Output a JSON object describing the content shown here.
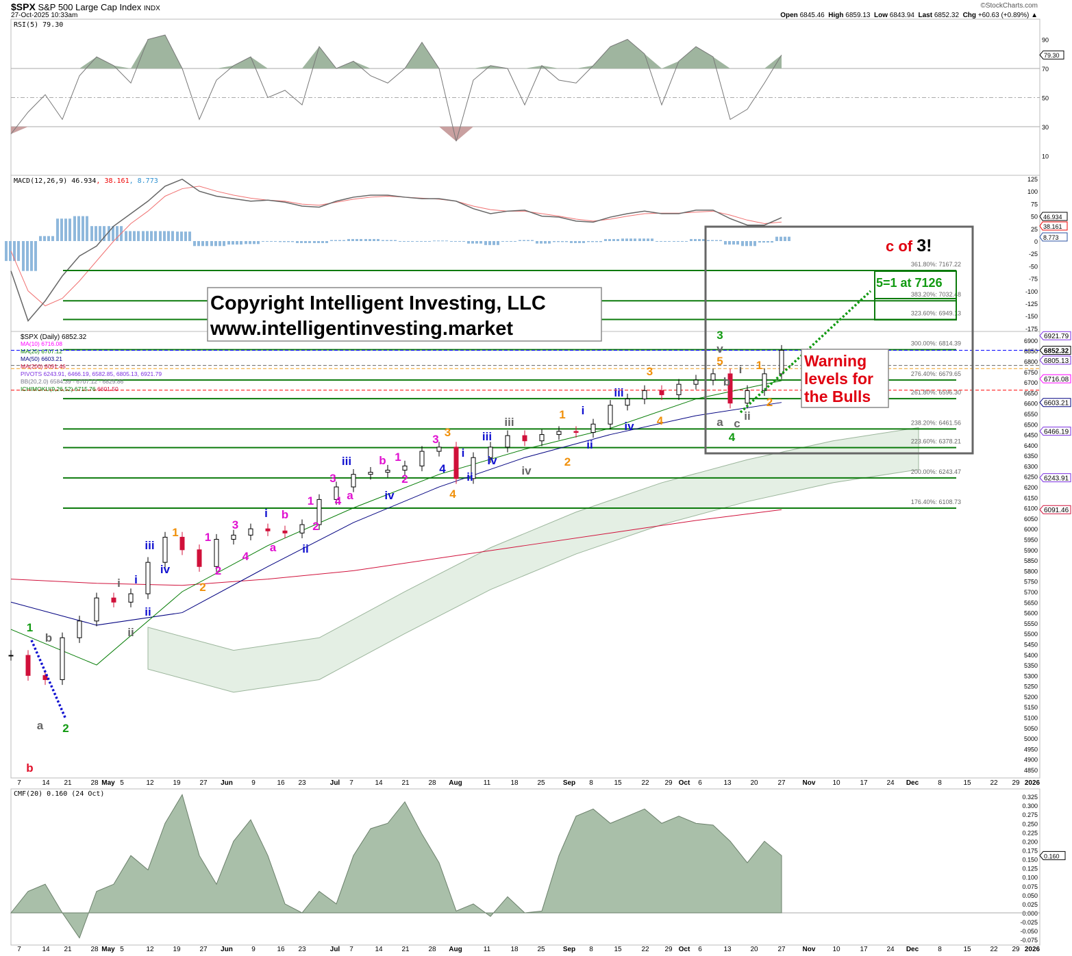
{
  "header": {
    "symbol": "$SPX",
    "name": "S&P 500 Large Cap Index",
    "exchange": "INDX",
    "datetime": "27-Oct-2025 10:33am",
    "brand": "©StockCharts.com",
    "open_label": "Open",
    "open": "6845.46",
    "high_label": "High",
    "high": "6859.13",
    "low_label": "Low",
    "low": "6843.94",
    "last_label": "Last",
    "last": "6852.32",
    "chg_label": "Chg",
    "chg": "+60.63 (+0.89%)"
  },
  "colors": {
    "up": "#000000",
    "down": "#d0103a",
    "ma10": "#ff00ff",
    "ma20": "#007a00",
    "ma50": "#000080",
    "ma200": "#d0103a",
    "fib": "#0b7a0b",
    "rsi_fill": "#9fb59f",
    "cmf_fill": "#a9bfa9"
  },
  "legends": {
    "rsi": "RSI(5) 79.30",
    "macd_main": "MACD(12,26,9) 46.934",
    "macd_signal": ", 38.161",
    "macd_hist": ", 8.773",
    "price": "$SPX (Daily) 6852.32",
    "ma10": "MA(10) 6716.08",
    "ma20": "MA(20) 6707.12",
    "ma50": "MA(50) 6603.21",
    "ma200": "MA(200) 6091.46",
    "pivots": "PIVOTS 6243.91, 6466.19, 6582.85, 6805.13, 6921.79",
    "bb": "BB(20,2.0) 6584.39 - 6707.12 - 6829.86",
    "ichimoku": "ICHIMOKU(9,26,52) 6715.76",
    "ichimoku_2": "6601.50",
    "cmf": "CMF(20) 0.160 (24 Oct)"
  },
  "annotations": {
    "copyright_line1": "Copyright Intelligent Investing, LLC",
    "copyright_line2": "www.intelligentinvesting.market",
    "warning_line1": "Warning",
    "warning_line2": "levels for",
    "warning_line3": "the Bulls",
    "c_of": "c of",
    "three": "3!",
    "target": "5=1 at 7126"
  },
  "x_axis_labels": [
    "7",
    "14",
    "21",
    "28",
    "May",
    "5",
    "12",
    "19",
    "27",
    "Jun",
    "9",
    "16",
    "23",
    "Jul",
    "7",
    "14",
    "21",
    "28",
    "Aug",
    "11",
    "18",
    "25",
    "Sep",
    "8",
    "15",
    "22",
    "29",
    "Oct",
    "6",
    "13",
    "20",
    "27",
    "Nov",
    "10",
    "17",
    "24",
    "Dec",
    "8",
    "15",
    "22",
    "29",
    "2026"
  ],
  "chart_data": [
    {
      "type": "line",
      "title": "RSI(5)",
      "ylim": [
        0,
        100
      ],
      "y_ticks": [
        90,
        70,
        50,
        30,
        10
      ],
      "reference_lines": [
        70,
        50,
        30
      ],
      "last_value": "79.30",
      "x_range": [
        "Apr 3",
        "Oct 27"
      ],
      "values": [
        25,
        40,
        52,
        35,
        65,
        78,
        72,
        60,
        90,
        93,
        70,
        35,
        62,
        72,
        78,
        50,
        55,
        45,
        85,
        70,
        75,
        65,
        60,
        70,
        88,
        70,
        20,
        62,
        72,
        70,
        45,
        72,
        62,
        60,
        72,
        85,
        90,
        80,
        45,
        75,
        85,
        78,
        35,
        42,
        60,
        79.3
      ]
    },
    {
      "type": "bar",
      "title": "MACD(12,26,9)",
      "y_ticks": [
        125,
        100,
        75,
        50,
        25,
        0,
        -25,
        -50,
        -75,
        -100,
        -125,
        -150,
        -175
      ],
      "last_values": {
        "macd": "46.934",
        "signal": "38.161",
        "histogram": "8.773"
      },
      "macd": [
        -60,
        -160,
        -120,
        -70,
        -30,
        -10,
        30,
        55,
        80,
        110,
        124,
        100,
        90,
        85,
        80,
        82,
        78,
        70,
        68,
        80,
        88,
        92,
        92,
        88,
        85,
        85,
        80,
        65,
        55,
        60,
        62,
        50,
        48,
        40,
        38,
        48,
        55,
        60,
        55,
        55,
        62,
        62,
        45,
        32,
        32,
        46.9
      ],
      "signal": [
        -20,
        -100,
        -130,
        -115,
        -80,
        -40,
        0,
        35,
        60,
        90,
        105,
        110,
        100,
        92,
        86,
        82,
        80,
        74,
        72,
        78,
        84,
        88,
        90,
        88,
        86,
        84,
        80,
        70,
        63,
        60,
        60,
        55,
        50,
        44,
        40,
        44,
        50,
        55,
        56,
        56,
        58,
        60,
        52,
        42,
        35,
        38.2
      ]
    },
    {
      "type": "line",
      "title": "$SPX (Daily)",
      "subtitle": "S&P 500 Large Cap Index",
      "x_range": [
        "Apr 3",
        "Oct 27"
      ],
      "y_ticks": [
        6900,
        6850,
        6800,
        6750,
        6700,
        6650,
        6600,
        6550,
        6500,
        6450,
        6400,
        6350,
        6300,
        6250,
        6200,
        6150,
        6100,
        6050,
        6000,
        5950,
        5900,
        5850,
        5800,
        5750,
        5700,
        5650,
        5600,
        5550,
        5500,
        5450,
        5400,
        5350,
        5300,
        5250,
        5200,
        5150,
        5100,
        5050,
        5000,
        4950,
        4900,
        4850
      ],
      "close": [
        5396,
        5300,
        5280,
        5480,
        5560,
        5670,
        5650,
        5690,
        5840,
        5960,
        5900,
        5820,
        5950,
        5970,
        6000,
        5990,
        5980,
        6020,
        6140,
        6200,
        6260,
        6270,
        6280,
        6300,
        6370,
        6390,
        6240,
        6340,
        6390,
        6445,
        6420,
        6450,
        6465,
        6460,
        6500,
        6590,
        6620,
        6660,
        6640,
        6690,
        6710,
        6740,
        6600,
        6660,
        6740,
        6852.32
      ],
      "ma20": [
        5520,
        5350,
        5700,
        5920,
        6100,
        6260,
        6380,
        6480,
        6620,
        6707.12
      ],
      "ma50": [
        5650,
        5540,
        5600,
        5820,
        6030,
        6200,
        6340,
        6450,
        6540,
        6603.21
      ],
      "ma200": [
        5760,
        5740,
        5730,
        5760,
        5800,
        5860,
        5920,
        5980,
        6040,
        6091.46
      ],
      "fib_levels": [
        {
          "label": "361.80%: 7167.22",
          "value": 7167.22
        },
        {
          "label": "383.20%: 7032.48",
          "value": 7032.48
        },
        {
          "label": "323.60%: 6949.13",
          "value": 6949.13
        },
        {
          "label": "300.00%: 6814.39",
          "value": 6814.39
        },
        {
          "label": "276.40%: 6679.65",
          "value": 6679.65
        },
        {
          "label": "261.80%: 6596.30",
          "value": 6596.3
        },
        {
          "label": "238.20%: 6461.56",
          "value": 6461.56
        },
        {
          "label": "223.60%: 6378.21",
          "value": 6378.21
        },
        {
          "label": "200.00%: 6243.47",
          "value": 6243.47
        },
        {
          "label": "176.40%: 6108.73",
          "value": 6108.73
        }
      ],
      "dashed_levels": [
        {
          "value": 6852.32,
          "color": "#0000ff"
        },
        {
          "value": 6780,
          "color": "#666666"
        },
        {
          "value": 6765,
          "color": "#f0a020"
        },
        {
          "value": 6662,
          "color": "#ff0000"
        }
      ],
      "value_tags": [
        {
          "text": "6921.79",
          "value": 6921.79,
          "color": "#7b2fe0"
        },
        {
          "text": "6852.32",
          "value": 6852.32,
          "color": "#000000"
        },
        {
          "text": "6805.13",
          "value": 6805.13,
          "color": "#7b2fe0"
        },
        {
          "text": "6716.08",
          "value": 6716.08,
          "color": "#ff00ff"
        },
        {
          "text": "6603.21",
          "value": 6603.21,
          "color": "#000080"
        },
        {
          "text": "6466.19",
          "value": 6466.19,
          "color": "#7b2fe0"
        },
        {
          "text": "6243.91",
          "value": 6243.91,
          "color": "#7b2fe0"
        },
        {
          "text": "6091.46",
          "value": 6091.46,
          "color": "#d0103a"
        }
      ],
      "wave_labels": [
        {
          "t": "1",
          "c": "#119a11",
          "i": 1.1,
          "p": 5533
        },
        {
          "t": "b",
          "c": "#666666",
          "i": 2.2,
          "p": 5484
        },
        {
          "t": "a",
          "c": "#666666",
          "i": 1.7,
          "p": 5066
        },
        {
          "t": "b",
          "c": "#e0102a",
          "i": 1.1,
          "p": 4863
        },
        {
          "t": "2",
          "c": "#119a11",
          "i": 3.2,
          "p": 5053
        },
        {
          "t": "i",
          "c": "#666666",
          "i": 6.3,
          "p": 5746
        },
        {
          "t": "ii",
          "c": "#666666",
          "i": 7.0,
          "p": 5510
        },
        {
          "t": "i",
          "c": "#1010d0",
          "i": 7.3,
          "p": 5762
        },
        {
          "t": "ii",
          "c": "#1010d0",
          "i": 8.0,
          "p": 5608
        },
        {
          "t": "iii",
          "c": "#1010d0",
          "i": 8.1,
          "p": 5925
        },
        {
          "t": "iv",
          "c": "#1010d0",
          "i": 9.0,
          "p": 5811
        },
        {
          "t": "1",
          "c": "#f0900a",
          "i": 9.6,
          "p": 5988
        },
        {
          "t": "2",
          "c": "#f0900a",
          "i": 11.2,
          "p": 5726
        },
        {
          "t": "1",
          "c": "#e010d0",
          "i": 11.5,
          "p": 5965
        },
        {
          "t": "2",
          "c": "#e010d0",
          "i": 12.1,
          "p": 5805
        },
        {
          "t": "3",
          "c": "#e010d0",
          "i": 13.1,
          "p": 6024
        },
        {
          "t": "4",
          "c": "#e010d0",
          "i": 13.7,
          "p": 5873
        },
        {
          "t": "a",
          "c": "#e010d0",
          "i": 15.3,
          "p": 5916
        },
        {
          "t": "i",
          "c": "#1010d0",
          "i": 14.9,
          "p": 6079
        },
        {
          "t": "b",
          "c": "#e010d0",
          "i": 16.0,
          "p": 6073
        },
        {
          "t": "ii",
          "c": "#1010d0",
          "i": 17.2,
          "p": 5909
        },
        {
          "t": "1",
          "c": "#e010d0",
          "i": 17.5,
          "p": 6138
        },
        {
          "t": "2",
          "c": "#e010d0",
          "i": 17.8,
          "p": 6017
        },
        {
          "t": "3",
          "c": "#e010d0",
          "i": 18.8,
          "p": 6246
        },
        {
          "t": "4",
          "c": "#e010d0",
          "i": 19.1,
          "p": 6138
        },
        {
          "t": "a",
          "c": "#e010d0",
          "i": 19.8,
          "p": 6164
        },
        {
          "t": "iii",
          "c": "#1010d0",
          "i": 19.6,
          "p": 6328
        },
        {
          "t": "iv",
          "c": "#1010d0",
          "i": 22.1,
          "p": 6164
        },
        {
          "t": "b",
          "c": "#e010d0",
          "i": 21.7,
          "p": 6331
        },
        {
          "t": "1",
          "c": "#e010d0",
          "i": 22.6,
          "p": 6347
        },
        {
          "t": "2",
          "c": "#e010d0",
          "i": 23.0,
          "p": 6243
        },
        {
          "t": "3",
          "c": "#e010d0",
          "i": 24.8,
          "p": 6432
        },
        {
          "t": "3",
          "c": "#f0900a",
          "i": 25.5,
          "p": 6465
        },
        {
          "t": "4",
          "c": "#f0900a",
          "i": 25.8,
          "p": 6171
        },
        {
          "t": "4",
          "c": "#1010d0",
          "i": 25.2,
          "p": 6292
        },
        {
          "t": "i",
          "c": "#1010d0",
          "i": 26.4,
          "p": 6367
        },
        {
          "t": "ii",
          "c": "#1010d0",
          "i": 26.8,
          "p": 6252
        },
        {
          "t": "iii",
          "c": "#1010d0",
          "i": 27.8,
          "p": 6445
        },
        {
          "t": "iv",
          "c": "#1010d0",
          "i": 28.1,
          "p": 6331
        },
        {
          "t": "iii",
          "c": "#666666",
          "i": 29.1,
          "p": 6514
        },
        {
          "t": "iv",
          "c": "#666666",
          "i": 30.1,
          "p": 6282
        },
        {
          "t": "1",
          "c": "#f0900a",
          "i": 32.2,
          "p": 6550
        },
        {
          "t": "2",
          "c": "#f0900a",
          "i": 32.5,
          "p": 6324
        },
        {
          "t": "i",
          "c": "#1010d0",
          "i": 33.4,
          "p": 6569
        },
        {
          "t": "ii",
          "c": "#1010d0",
          "i": 33.8,
          "p": 6406
        },
        {
          "t": "iii",
          "c": "#1010d0",
          "i": 35.5,
          "p": 6654
        },
        {
          "t": "iv",
          "c": "#1010d0",
          "i": 36.1,
          "p": 6494
        },
        {
          "t": "3",
          "c": "#f0900a",
          "i": 37.3,
          "p": 6756
        },
        {
          "t": "4",
          "c": "#f0900a",
          "i": 37.9,
          "p": 6520
        },
        {
          "t": "3",
          "c": "#119a11",
          "i": 41.4,
          "p": 6929
        },
        {
          "t": "v",
          "c": "#666666",
          "i": 41.4,
          "p": 6864
        },
        {
          "t": "5",
          "c": "#f0900a",
          "i": 41.4,
          "p": 6805
        },
        {
          "t": "b",
          "c": "#666666",
          "i": 41.8,
          "p": 6707
        },
        {
          "t": "a",
          "c": "#666666",
          "i": 41.4,
          "p": 6514
        },
        {
          "t": "c",
          "c": "#666666",
          "i": 42.4,
          "p": 6507
        },
        {
          "t": "4",
          "c": "#119a11",
          "i": 42.1,
          "p": 6442
        },
        {
          "t": "i",
          "c": "#666666",
          "i": 42.6,
          "p": 6766
        },
        {
          "t": "ii",
          "c": "#666666",
          "i": 43.0,
          "p": 6543
        },
        {
          "t": "1",
          "c": "#f0900a",
          "i": 43.7,
          "p": 6785
        },
        {
          "t": "2",
          "c": "#f0900a",
          "i": 44.3,
          "p": 6609
        }
      ],
      "arrows": [
        {
          "color": "#1010d0",
          "from": {
            "i": 1.2,
            "p": 5468
          },
          "to": {
            "i": 3.2,
            "p": 5092
          }
        },
        {
          "color": "#119a11",
          "from": {
            "i": 42.6,
            "p": 6556
          },
          "to": {
            "i": 50.2,
            "p": 7135
          }
        }
      ]
    },
    {
      "type": "area",
      "title": "CMF(20)",
      "last_value": "0.160",
      "y_ticks": [
        "0.325",
        "0.300",
        "0.275",
        "0.250",
        "0.225",
        "0.200",
        "0.175",
        "0.150",
        "0.125",
        "0.100",
        "0.075",
        "0.050",
        "0.025",
        "0.000",
        "-0.025",
        "-0.050",
        "-0.075"
      ],
      "values": [
        0,
        0.06,
        0.08,
        0,
        -0.07,
        0.06,
        0.08,
        0.16,
        0.12,
        0.25,
        0.33,
        0.16,
        0.08,
        0.2,
        0.26,
        0.16,
        0.025,
        0,
        0.06,
        0.025,
        0.16,
        0.235,
        0.25,
        0.31,
        0.22,
        0.14,
        0.005,
        0.025,
        -0.01,
        0.045,
        0,
        0.005,
        0.16,
        0.27,
        0.29,
        0.25,
        0.27,
        0.29,
        0.25,
        0.27,
        0.25,
        0.245,
        0.2,
        0.14,
        0.2,
        0.16
      ]
    }
  ]
}
